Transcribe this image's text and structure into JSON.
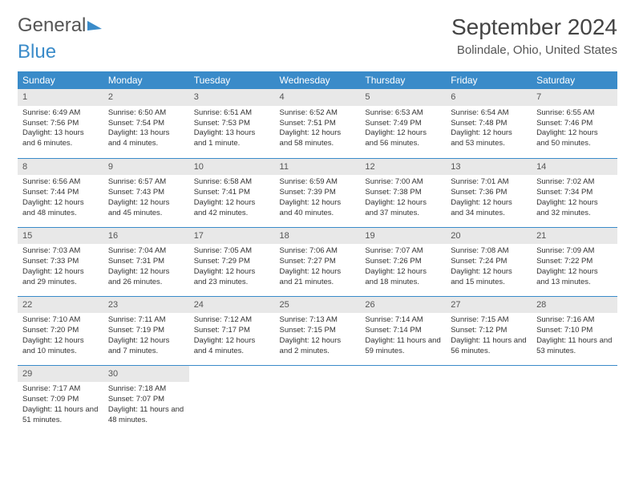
{
  "logo": {
    "part1": "General",
    "part2": "Blue"
  },
  "header": {
    "month_title": "September 2024",
    "location": "Bolindale, Ohio, United States"
  },
  "calendar": {
    "day_header_bg": "#3a8bc9",
    "day_header_text": "#ffffff",
    "daynum_bg": "#e8e8e8",
    "row_border_color": "#3a8bc9",
    "dow_labels": [
      "Sunday",
      "Monday",
      "Tuesday",
      "Wednesday",
      "Thursday",
      "Friday",
      "Saturday"
    ],
    "days": [
      {
        "n": "1",
        "sunrise": "6:49 AM",
        "sunset": "7:56 PM",
        "daylight": "13 hours and 6 minutes."
      },
      {
        "n": "2",
        "sunrise": "6:50 AM",
        "sunset": "7:54 PM",
        "daylight": "13 hours and 4 minutes."
      },
      {
        "n": "3",
        "sunrise": "6:51 AM",
        "sunset": "7:53 PM",
        "daylight": "13 hours and 1 minute."
      },
      {
        "n": "4",
        "sunrise": "6:52 AM",
        "sunset": "7:51 PM",
        "daylight": "12 hours and 58 minutes."
      },
      {
        "n": "5",
        "sunrise": "6:53 AM",
        "sunset": "7:49 PM",
        "daylight": "12 hours and 56 minutes."
      },
      {
        "n": "6",
        "sunrise": "6:54 AM",
        "sunset": "7:48 PM",
        "daylight": "12 hours and 53 minutes."
      },
      {
        "n": "7",
        "sunrise": "6:55 AM",
        "sunset": "7:46 PM",
        "daylight": "12 hours and 50 minutes."
      },
      {
        "n": "8",
        "sunrise": "6:56 AM",
        "sunset": "7:44 PM",
        "daylight": "12 hours and 48 minutes."
      },
      {
        "n": "9",
        "sunrise": "6:57 AM",
        "sunset": "7:43 PM",
        "daylight": "12 hours and 45 minutes."
      },
      {
        "n": "10",
        "sunrise": "6:58 AM",
        "sunset": "7:41 PM",
        "daylight": "12 hours and 42 minutes."
      },
      {
        "n": "11",
        "sunrise": "6:59 AM",
        "sunset": "7:39 PM",
        "daylight": "12 hours and 40 minutes."
      },
      {
        "n": "12",
        "sunrise": "7:00 AM",
        "sunset": "7:38 PM",
        "daylight": "12 hours and 37 minutes."
      },
      {
        "n": "13",
        "sunrise": "7:01 AM",
        "sunset": "7:36 PM",
        "daylight": "12 hours and 34 minutes."
      },
      {
        "n": "14",
        "sunrise": "7:02 AM",
        "sunset": "7:34 PM",
        "daylight": "12 hours and 32 minutes."
      },
      {
        "n": "15",
        "sunrise": "7:03 AM",
        "sunset": "7:33 PM",
        "daylight": "12 hours and 29 minutes."
      },
      {
        "n": "16",
        "sunrise": "7:04 AM",
        "sunset": "7:31 PM",
        "daylight": "12 hours and 26 minutes."
      },
      {
        "n": "17",
        "sunrise": "7:05 AM",
        "sunset": "7:29 PM",
        "daylight": "12 hours and 23 minutes."
      },
      {
        "n": "18",
        "sunrise": "7:06 AM",
        "sunset": "7:27 PM",
        "daylight": "12 hours and 21 minutes."
      },
      {
        "n": "19",
        "sunrise": "7:07 AM",
        "sunset": "7:26 PM",
        "daylight": "12 hours and 18 minutes."
      },
      {
        "n": "20",
        "sunrise": "7:08 AM",
        "sunset": "7:24 PM",
        "daylight": "12 hours and 15 minutes."
      },
      {
        "n": "21",
        "sunrise": "7:09 AM",
        "sunset": "7:22 PM",
        "daylight": "12 hours and 13 minutes."
      },
      {
        "n": "22",
        "sunrise": "7:10 AM",
        "sunset": "7:20 PM",
        "daylight": "12 hours and 10 minutes."
      },
      {
        "n": "23",
        "sunrise": "7:11 AM",
        "sunset": "7:19 PM",
        "daylight": "12 hours and 7 minutes."
      },
      {
        "n": "24",
        "sunrise": "7:12 AM",
        "sunset": "7:17 PM",
        "daylight": "12 hours and 4 minutes."
      },
      {
        "n": "25",
        "sunrise": "7:13 AM",
        "sunset": "7:15 PM",
        "daylight": "12 hours and 2 minutes."
      },
      {
        "n": "26",
        "sunrise": "7:14 AM",
        "sunset": "7:14 PM",
        "daylight": "11 hours and 59 minutes."
      },
      {
        "n": "27",
        "sunrise": "7:15 AM",
        "sunset": "7:12 PM",
        "daylight": "11 hours and 56 minutes."
      },
      {
        "n": "28",
        "sunrise": "7:16 AM",
        "sunset": "7:10 PM",
        "daylight": "11 hours and 53 minutes."
      },
      {
        "n": "29",
        "sunrise": "7:17 AM",
        "sunset": "7:09 PM",
        "daylight": "11 hours and 51 minutes."
      },
      {
        "n": "30",
        "sunrise": "7:18 AM",
        "sunset": "7:07 PM",
        "daylight": "11 hours and 48 minutes."
      }
    ],
    "labels": {
      "sunrise_prefix": "Sunrise: ",
      "sunset_prefix": "Sunset: ",
      "daylight_prefix": "Daylight: "
    }
  }
}
